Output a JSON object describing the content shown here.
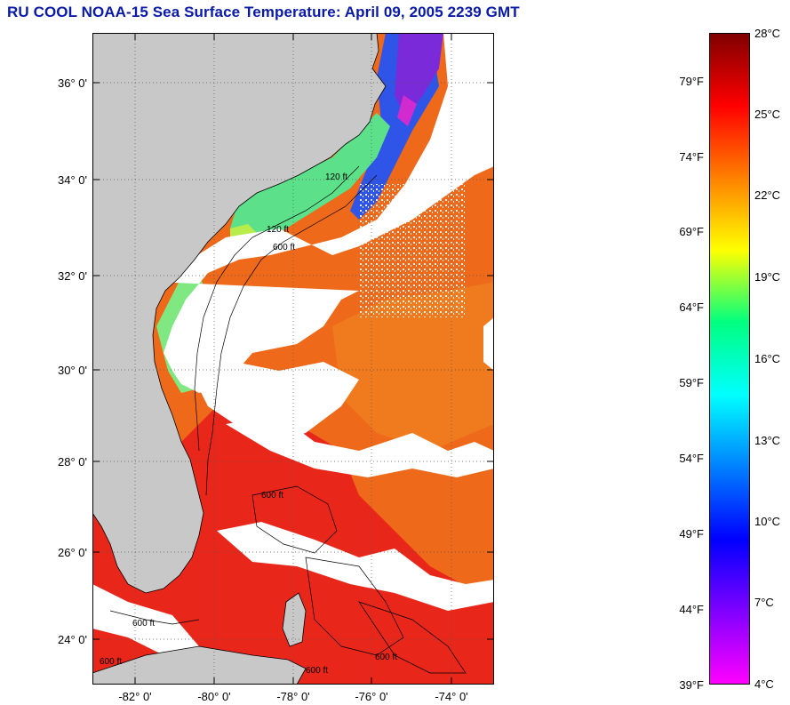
{
  "title": "RU COOL  NOAA-15  Sea Surface Temperature:  April 09, 2005 2239 GMT",
  "map": {
    "lat_labels": [
      "36° 0'",
      "34° 0'",
      "32° 0'",
      "30° 0'",
      "28° 0'",
      "26° 0'",
      "24° 0'"
    ],
    "lon_labels": [
      "-82° 0'",
      "-80° 0'",
      "-78° 0'",
      "-76° 0'",
      "-74° 0'"
    ],
    "contour_labels": [
      "120 ft",
      "600 ft",
      "120 ft",
      "600 ft",
      "600 ft",
      "600 ft",
      "600 ft",
      "600 ft"
    ],
    "colors": {
      "land": "#c8c8c8",
      "cloud": "#ffffff",
      "warm_sst": "#ee6a1a",
      "gulf_stream": "#e8281a",
      "shelf_cold": "#3a63f0",
      "shelf_cool": "#60e88a"
    }
  },
  "colorbar": {
    "fahrenheit_labels": [
      "79°F",
      "74°F",
      "69°F",
      "64°F",
      "59°F",
      "54°F",
      "49°F",
      "44°F",
      "39°F"
    ],
    "celsius_labels": [
      "28°C",
      "25°C",
      "22°C",
      "19°C",
      "16°C",
      "13°C",
      "10°C",
      "7°C",
      "4°C"
    ],
    "range_c": [
      4,
      28
    ],
    "stops": [
      "#800000",
      "#ff0000",
      "#ff8000",
      "#ffff00",
      "#00ff80",
      "#00ffff",
      "#0080ff",
      "#0000ff",
      "#8000ff",
      "#ff00ff"
    ]
  }
}
